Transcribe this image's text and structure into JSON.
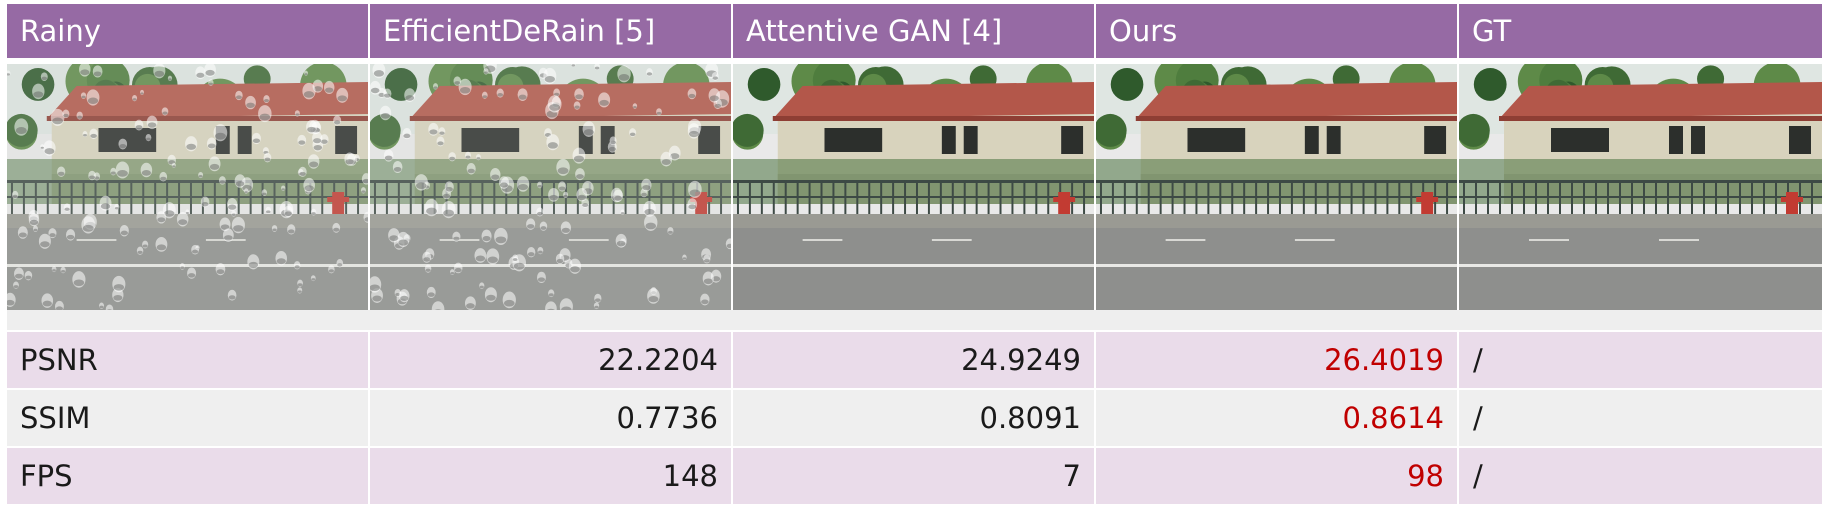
{
  "columns": [
    "Rainy",
    "EfficientDeRain [5]",
    "Attentive GAN [4]",
    "Ours",
    "GT"
  ],
  "image_panels": [
    {
      "name": "rainy-image",
      "rain_drops": true
    },
    {
      "name": "efficientderain-image",
      "rain_drops": true
    },
    {
      "name": "attentive-gan-image",
      "rain_drops": false
    },
    {
      "name": "ours-image",
      "rain_drops": false
    },
    {
      "name": "gt-image",
      "rain_drops": false
    }
  ],
  "metrics": [
    {
      "label": "PSNR",
      "values": [
        "22.2204",
        "24.9249",
        "26.4019"
      ],
      "gt": "/"
    },
    {
      "label": "SSIM",
      "values": [
        "0.7736",
        "0.8091",
        "0.8614"
      ],
      "gt": "/"
    },
    {
      "label": "FPS",
      "values": [
        "148",
        "7",
        "98"
      ],
      "gt": "/"
    }
  ],
  "colors": {
    "header_bg": "#966aa4",
    "row_alt_bg": "#eadcea",
    "row_plain_bg": "#efefef",
    "best_value": "#c00000"
  }
}
